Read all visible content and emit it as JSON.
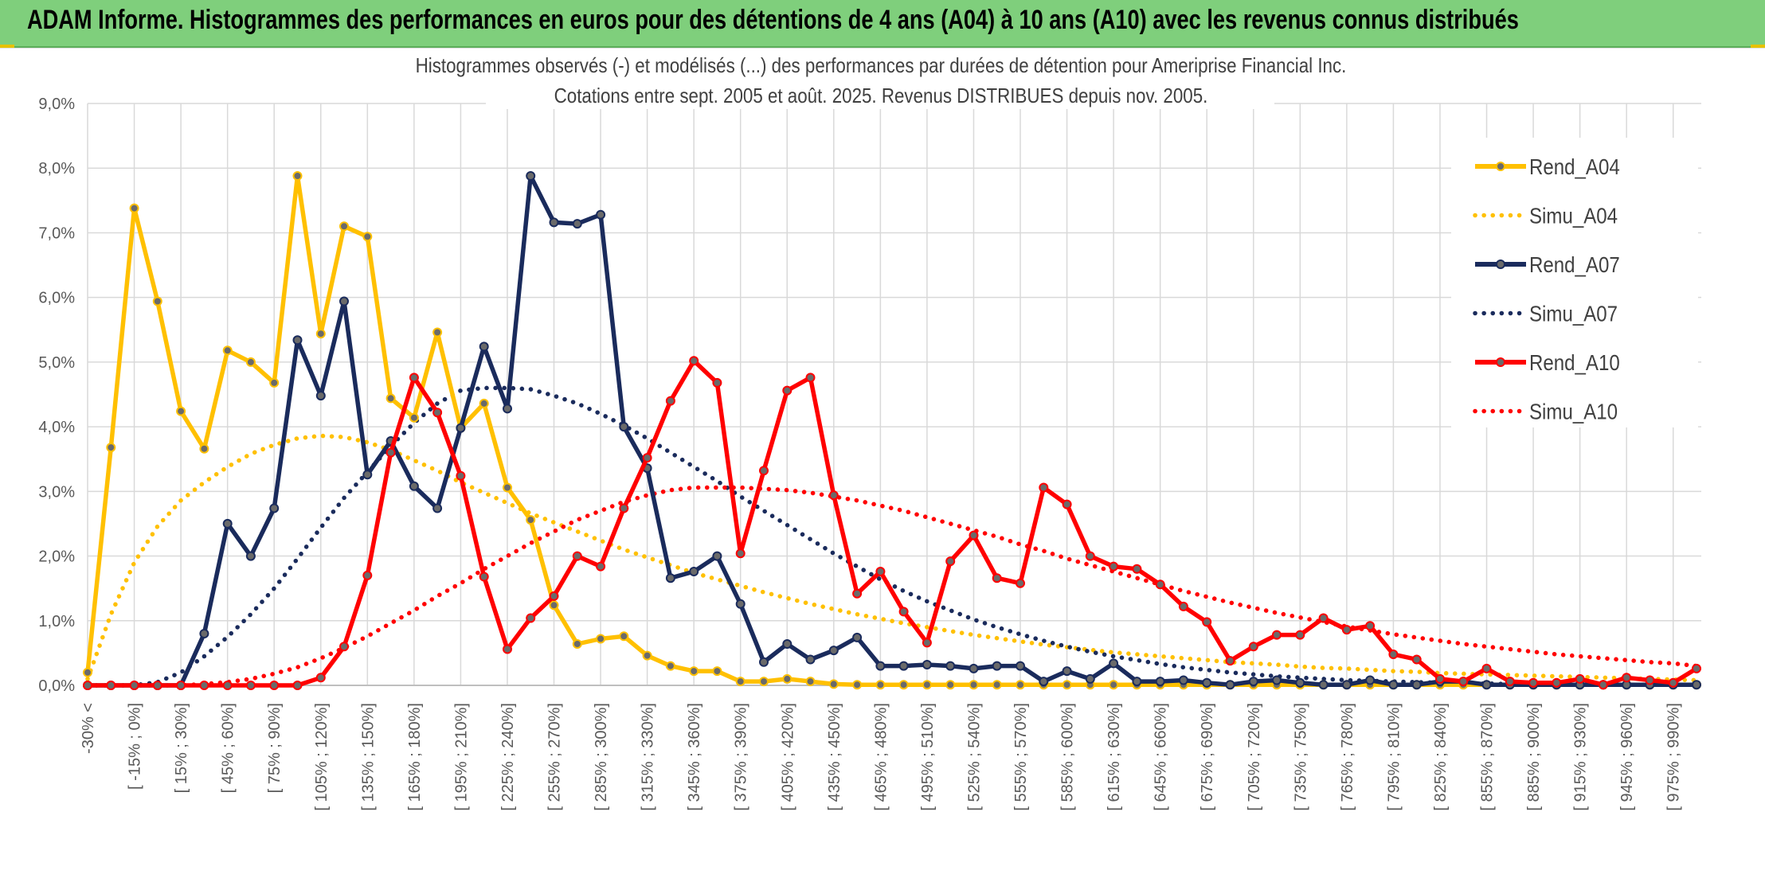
{
  "header": {
    "title": "ADAM Informe. Histogrammes des performances en euros pour des détentions de 4 ans (A04) à 10 ans (A10) avec les revenus connus distribués"
  },
  "chart_data": {
    "type": "line",
    "title": "Histogrammes observés (-) et modélisés (...) des performances par durées de détention pour Ameriprise Financial Inc.",
    "subtitle": "Cotations entre sept. 2005 et août. 2025. Revenus DISTRIBUES depuis nov. 2005.",
    "y_ticks": [
      "0,0%",
      "1,0%",
      "2,0%",
      "3,0%",
      "4,0%",
      "5,0%",
      "6,0%",
      "7,0%",
      "8,0%",
      "9,0%"
    ],
    "ylim": [
      0,
      9
    ],
    "grid": true,
    "legend_position": "right",
    "x_tick_labels": [
      "-30% <",
      "[ -15% ; 0%]",
      "[ 15% ; 30%]",
      "[ 45% ; 60%]",
      "[ 75% ; 90%]",
      "[ 105% ; 120%]",
      "[ 135% ; 150%]",
      "[ 165% ; 180%]",
      "[ 195% ; 210%]",
      "[ 225% ; 240%]",
      "[ 255% ; 270%]",
      "[ 285% ; 300%]",
      "[ 315% ; 330%]",
      "[ 345% ; 360%]",
      "[ 375% ; 390%]",
      "[ 405% ; 420%]",
      "[ 435% ; 450%]",
      "[ 465% ; 480%]",
      "[ 495% ; 510%]",
      "[ 525% ; 540%]",
      "[ 555% ; 570%]",
      "[ 585% ; 600%]",
      "[ 615% ; 630%]",
      "[ 645% ; 660%]",
      "[ 675% ; 690%]",
      "[ 705% ; 720%]",
      "[ 735% ; 750%]",
      "[ 765% ; 780%]",
      "[ 795% ; 810%]",
      "[ 825% ; 840%]",
      "[ 855% ; 870%]",
      "[ 885% ; 900%]",
      "[ 915% ; 930%]",
      "[ 945% ; 960%]",
      "[ 975% ; 990%]"
    ],
    "series": [
      {
        "name": "Rend_A04",
        "style": "solid",
        "color": "#ffc000",
        "values": [
          0.2,
          3.68,
          7.38,
          5.94,
          4.24,
          3.66,
          5.18,
          5.0,
          4.68,
          7.88,
          5.44,
          7.1,
          6.94,
          4.44,
          4.14,
          5.46,
          3.98,
          4.36,
          3.06,
          2.56,
          1.24,
          0.64,
          0.72,
          0.76,
          0.46,
          0.3,
          0.22,
          0.22,
          0.06,
          0.06,
          0.1,
          0.06,
          0.02,
          0.01,
          0.01,
          0.01,
          0.01,
          0.01,
          0.01,
          0.01,
          0.01,
          0.01,
          0.01,
          0.01,
          0.01,
          0.01,
          0.01,
          0.01,
          0.01,
          0.01,
          0.01,
          0.01,
          0.01,
          0.01,
          0.01,
          0.01,
          0.01,
          0.01,
          0.01,
          0.01,
          0.01,
          0.01,
          0.01,
          0.01,
          0.01,
          0.01,
          0.01,
          0.01,
          0.01,
          0.01
        ]
      },
      {
        "name": "Simu_A04",
        "style": "dotted",
        "color": "#ffc000",
        "values": [
          0.1,
          1.1,
          1.9,
          2.46,
          2.86,
          3.14,
          3.38,
          3.58,
          3.72,
          3.82,
          3.86,
          3.84,
          3.76,
          3.64,
          3.48,
          3.32,
          3.14,
          2.98,
          2.82,
          2.66,
          2.52,
          2.38,
          2.24,
          2.1,
          1.98,
          1.86,
          1.74,
          1.64,
          1.54,
          1.44,
          1.35,
          1.26,
          1.18,
          1.1,
          1.03,
          0.96,
          0.9,
          0.84,
          0.78,
          0.73,
          0.68,
          0.63,
          0.59,
          0.55,
          0.51,
          0.48,
          0.45,
          0.42,
          0.39,
          0.36,
          0.34,
          0.32,
          0.29,
          0.27,
          0.26,
          0.24,
          0.22,
          0.21,
          0.19,
          0.18,
          0.17,
          0.16,
          0.15,
          0.14,
          0.13,
          0.12,
          0.11,
          0.1,
          0.09,
          0.08
        ]
      },
      {
        "name": "Rend_A07",
        "style": "solid",
        "color": "#1a2b5c",
        "values": [
          0.0,
          0.0,
          0.0,
          0.0,
          0.0,
          0.8,
          2.5,
          2.0,
          2.74,
          5.34,
          4.48,
          5.94,
          3.26,
          3.78,
          3.08,
          2.74,
          3.98,
          5.24,
          4.28,
          7.88,
          7.16,
          7.14,
          7.28,
          4.0,
          3.36,
          1.66,
          1.76,
          2.0,
          1.26,
          0.36,
          0.64,
          0.4,
          0.54,
          0.74,
          0.3,
          0.3,
          0.32,
          0.3,
          0.26,
          0.3,
          0.3,
          0.06,
          0.22,
          0.1,
          0.34,
          0.06,
          0.06,
          0.08,
          0.04,
          0.01,
          0.06,
          0.08,
          0.04,
          0.01,
          0.01,
          0.08,
          0.01,
          0.01,
          0.06,
          0.06,
          0.01,
          0.01,
          0.01,
          0.01,
          0.01,
          0.01,
          0.01,
          0.01,
          0.01,
          0.01
        ]
      },
      {
        "name": "Simu_A07",
        "style": "dotted",
        "color": "#1a2b5c",
        "values": [
          0.0,
          0.0,
          0.0,
          0.05,
          0.2,
          0.45,
          0.75,
          1.1,
          1.5,
          1.96,
          2.44,
          2.9,
          3.3,
          3.7,
          4.06,
          4.36,
          4.56,
          4.6,
          4.6,
          4.58,
          4.48,
          4.36,
          4.2,
          4.02,
          3.82,
          3.6,
          3.38,
          3.16,
          2.92,
          2.7,
          2.48,
          2.26,
          2.04,
          1.84,
          1.64,
          1.46,
          1.3,
          1.16,
          1.02,
          0.9,
          0.79,
          0.69,
          0.6,
          0.52,
          0.45,
          0.39,
          0.33,
          0.28,
          0.24,
          0.2,
          0.17,
          0.14,
          0.12,
          0.1,
          0.08,
          0.07,
          0.06,
          0.05,
          0.04,
          0.03,
          0.03,
          0.02,
          0.02,
          0.01,
          0.01,
          0.01,
          0.01,
          0.01,
          0.01,
          0.01
        ]
      },
      {
        "name": "Rend_A10",
        "style": "solid",
        "color": "#ff0000",
        "values": [
          0.0,
          0.0,
          0.0,
          0.0,
          0.0,
          0.0,
          0.0,
          0.0,
          0.0,
          0.0,
          0.12,
          0.6,
          1.7,
          3.6,
          4.76,
          4.22,
          3.24,
          1.68,
          0.56,
          1.04,
          1.38,
          2.0,
          1.84,
          2.74,
          3.52,
          4.4,
          5.02,
          4.68,
          2.04,
          3.32,
          4.56,
          4.76,
          2.94,
          1.42,
          1.76,
          1.14,
          0.66,
          1.92,
          2.32,
          1.66,
          1.58,
          3.06,
          2.8,
          2.0,
          1.84,
          1.8,
          1.56,
          1.22,
          0.98,
          0.38,
          0.6,
          0.78,
          0.78,
          1.04,
          0.86,
          0.92,
          0.48,
          0.4,
          0.1,
          0.06,
          0.26,
          0.06,
          0.04,
          0.04,
          0.1,
          0.01,
          0.12,
          0.08,
          0.04,
          0.26
        ]
      },
      {
        "name": "Simu_A10",
        "style": "dotted",
        "color": "#ff0000",
        "values": [
          0.0,
          0.0,
          0.0,
          0.0,
          0.0,
          0.02,
          0.05,
          0.1,
          0.18,
          0.28,
          0.42,
          0.58,
          0.76,
          0.96,
          1.16,
          1.38,
          1.58,
          1.8,
          2.0,
          2.2,
          2.38,
          2.56,
          2.7,
          2.84,
          2.94,
          3.02,
          3.06,
          3.06,
          3.06,
          3.04,
          3.02,
          2.98,
          2.92,
          2.86,
          2.78,
          2.7,
          2.6,
          2.5,
          2.4,
          2.3,
          2.18,
          2.08,
          1.96,
          1.86,
          1.76,
          1.66,
          1.56,
          1.46,
          1.37,
          1.28,
          1.2,
          1.12,
          1.05,
          0.98,
          0.91,
          0.85,
          0.79,
          0.74,
          0.69,
          0.64,
          0.6,
          0.56,
          0.52,
          0.48,
          0.45,
          0.42,
          0.39,
          0.36,
          0.34,
          0.3
        ]
      }
    ]
  }
}
